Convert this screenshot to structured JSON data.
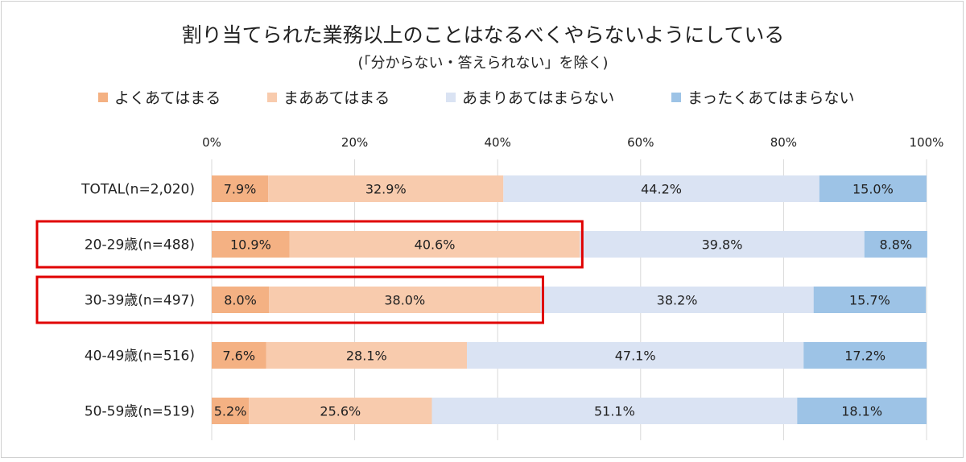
{
  "chart_data": {
    "type": "bar",
    "orientation": "horizontal",
    "stacked": true,
    "title": "割り当てられた業務以上のことはなるべくやらないようにしている",
    "subtitle": "(「分からない・答えられない」を除く)",
    "categories": [
      "TOTAL(n=2,020)",
      "20-29歳(n=488)",
      "30-39歳(n=497)",
      "40-49歳(n=516)",
      "50-59歳(n=519)"
    ],
    "series": [
      {
        "name": "よくあてはまる",
        "color": "#f4b183",
        "values": [
          7.9,
          10.9,
          8.0,
          7.6,
          5.2
        ]
      },
      {
        "name": "まああてはまる",
        "color": "#f8cbad",
        "values": [
          32.9,
          40.6,
          38.0,
          28.1,
          25.6
        ]
      },
      {
        "name": "あまりあてはまらない",
        "color": "#dae3f3",
        "values": [
          44.2,
          39.8,
          38.2,
          47.1,
          51.1
        ]
      },
      {
        "name": "まったくあてはまらない",
        "color": "#9dc3e6",
        "values": [
          15.0,
          8.8,
          15.7,
          17.2,
          18.1
        ]
      }
    ],
    "xlim": [
      0,
      100
    ],
    "x_ticks": [
      "0%",
      "20%",
      "40%",
      "60%",
      "80%",
      "100%"
    ],
    "legend_position": "top",
    "highlighted_categories": [
      1,
      2
    ],
    "highlight_color": "#e00000"
  }
}
